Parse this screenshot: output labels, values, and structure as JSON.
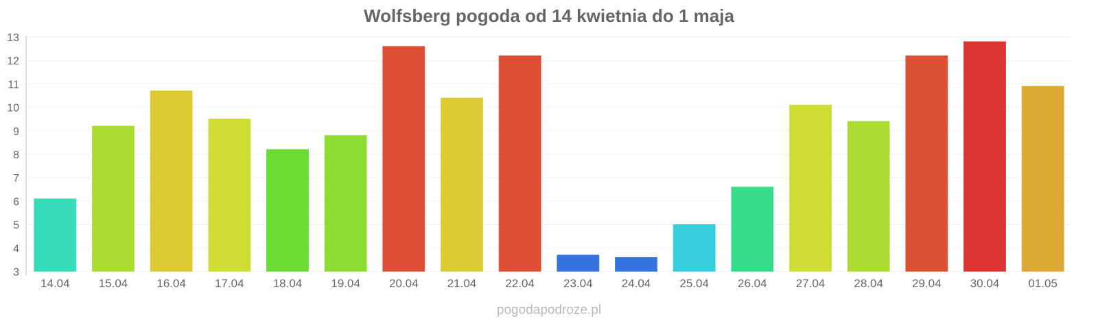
{
  "chart_data": {
    "type": "bar",
    "title": "Wolfsberg pogoda od 14 kwietnia do 1 maja",
    "xlabel": "",
    "ylabel": "",
    "ylim": [
      3,
      13
    ],
    "yticks": [
      "3",
      "4",
      "5",
      "6",
      "7",
      "8",
      "9",
      "10",
      "11",
      "12",
      "13"
    ],
    "grid": true,
    "categories": [
      "14.04",
      "15.04",
      "16.04",
      "17.04",
      "18.04",
      "19.04",
      "20.04",
      "21.04",
      "22.04",
      "23.04",
      "24.04",
      "25.04",
      "26.04",
      "27.04",
      "28.04",
      "29.04",
      "30.04",
      "01.05"
    ],
    "values": [
      6.1,
      9.2,
      10.7,
      9.5,
      8.2,
      8.8,
      12.6,
      10.4,
      12.2,
      3.7,
      3.6,
      5.0,
      6.6,
      10.1,
      9.4,
      12.2,
      12.8,
      10.9
    ],
    "colors": [
      "#36dcb9",
      "#acdc34",
      "#dcc934",
      "#cfdc34",
      "#6adc34",
      "#8cdc34",
      "#dc4f34",
      "#dccb34",
      "#dc4f34",
      "#3474dc",
      "#3474dc",
      "#36cedc",
      "#36dc89",
      "#cedc34",
      "#acdc34",
      "#dc5034",
      "#dc3434",
      "#dca834"
    ]
  },
  "watermark": "pogodapodroze.pl"
}
